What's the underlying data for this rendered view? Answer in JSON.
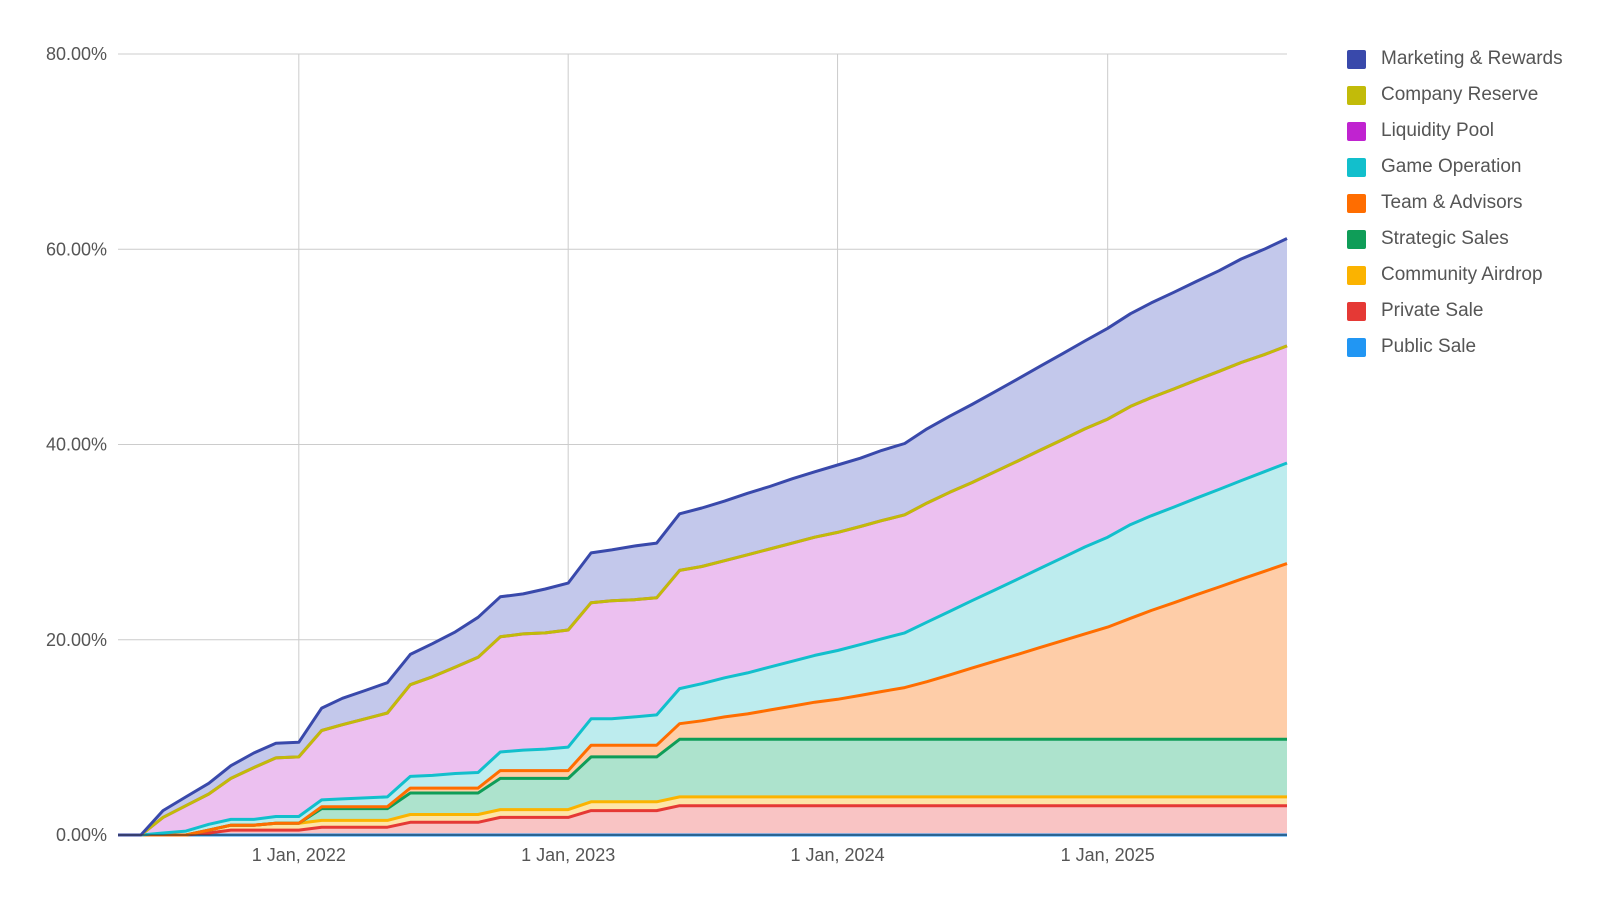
{
  "chart_data": {
    "type": "area",
    "stacked": true,
    "ylim": [
      0,
      80
    ],
    "y_tick_values": [
      0,
      20,
      40,
      60,
      80
    ],
    "y_tick_labels": [
      "0.00%",
      "20.00%",
      "40.00%",
      "60.00%",
      "80.00%"
    ],
    "xlim": [
      "2021-05-01",
      "2025-09-01"
    ],
    "x_tick_values": [
      "2022-01-01",
      "2023-01-01",
      "2024-01-01",
      "2025-01-01"
    ],
    "x_tick_labels": [
      "1 Jan, 2022",
      "1 Jan, 2023",
      "1 Jan, 2024",
      "1 Jan, 2025"
    ],
    "grid": true,
    "legend_position": "right",
    "x": [
      "2021-05-01",
      "2021-06-01",
      "2021-07-01",
      "2021-08-01",
      "2021-09-01",
      "2021-10-01",
      "2021-11-01",
      "2021-12-01",
      "2022-01-01",
      "2022-02-01",
      "2022-03-01",
      "2022-04-01",
      "2022-05-01",
      "2022-06-01",
      "2022-07-01",
      "2022-08-01",
      "2022-09-01",
      "2022-10-01",
      "2022-11-01",
      "2022-12-01",
      "2023-01-01",
      "2023-02-01",
      "2023-03-01",
      "2023-04-01",
      "2023-05-01",
      "2023-06-01",
      "2023-07-01",
      "2023-08-01",
      "2023-09-01",
      "2023-10-01",
      "2023-11-01",
      "2023-12-01",
      "2024-01-01",
      "2024-02-01",
      "2024-03-01",
      "2024-04-01",
      "2024-05-01",
      "2024-06-01",
      "2024-07-01",
      "2024-08-01",
      "2024-09-01",
      "2024-10-01",
      "2024-11-01",
      "2024-12-01",
      "2025-01-01",
      "2025-02-01",
      "2025-03-01",
      "2025-04-01",
      "2025-05-01",
      "2025-06-01",
      "2025-07-01",
      "2025-08-01",
      "2025-09-01"
    ],
    "series": [
      {
        "name": "Public Sale",
        "color": "#2196f3",
        "fill": "#bbdefb",
        "values": [
          0,
          0,
          0,
          0,
          0,
          0,
          0,
          0,
          0,
          0,
          0,
          0,
          0,
          0,
          0,
          0,
          0,
          0,
          0,
          0,
          0,
          0,
          0,
          0,
          0,
          0,
          0,
          0,
          0,
          0,
          0,
          0,
          0,
          0,
          0,
          0,
          0,
          0,
          0,
          0,
          0,
          0,
          0,
          0,
          0,
          0,
          0,
          0,
          0,
          0,
          0,
          0,
          0
        ]
      },
      {
        "name": "Private Sale",
        "color": "#e53935",
        "fill": "#f9c4c4",
        "values": [
          0,
          0,
          0,
          0,
          0.2,
          0.5,
          0.5,
          0.5,
          0.5,
          0.8,
          0.8,
          0.8,
          0.8,
          1.3,
          1.3,
          1.3,
          1.3,
          1.8,
          1.8,
          1.8,
          1.8,
          2.5,
          2.5,
          2.5,
          2.5,
          3,
          3,
          3,
          3,
          3,
          3,
          3,
          3,
          3,
          3,
          3,
          3,
          3,
          3,
          3,
          3,
          3,
          3,
          3,
          3,
          3,
          3,
          3,
          3,
          3,
          3,
          3,
          3
        ]
      },
      {
        "name": "Community Airdrop",
        "color": "#fbb300",
        "fill": "#fde5a8",
        "values": [
          0,
          0,
          0,
          0,
          0.3,
          0.5,
          0.5,
          0.7,
          0.7,
          0.7,
          0.7,
          0.7,
          0.7,
          0.8,
          0.8,
          0.8,
          0.8,
          0.8,
          0.8,
          0.8,
          0.8,
          0.9,
          0.9,
          0.9,
          0.9,
          0.9,
          0.9,
          0.9,
          0.9,
          0.9,
          0.9,
          0.9,
          0.9,
          0.9,
          0.9,
          0.9,
          0.9,
          0.9,
          0.9,
          0.9,
          0.9,
          0.9,
          0.9,
          0.9,
          0.9,
          0.9,
          0.9,
          0.9,
          0.9,
          0.9,
          0.9,
          0.9,
          0.9
        ]
      },
      {
        "name": "Strategic Sales",
        "color": "#0f9d58",
        "fill": "#ade3cd",
        "values": [
          0,
          0,
          0,
          0,
          0,
          0,
          0,
          0,
          0,
          1.2,
          1.2,
          1.2,
          1.2,
          2.2,
          2.2,
          2.2,
          2.2,
          3.2,
          3.2,
          3.2,
          3.2,
          4.6,
          4.6,
          4.6,
          4.6,
          5.9,
          5.9,
          5.9,
          5.9,
          5.9,
          5.9,
          5.9,
          5.9,
          5.9,
          5.9,
          5.9,
          5.9,
          5.9,
          5.9,
          5.9,
          5.9,
          5.9,
          5.9,
          5.9,
          5.9,
          5.9,
          5.9,
          5.9,
          5.9,
          5.9,
          5.9,
          5.9,
          5.9
        ]
      },
      {
        "name": "Team & Advisors",
        "color": "#ff6d00",
        "fill": "#fecda8",
        "values": [
          0,
          0,
          0,
          0,
          0,
          0,
          0,
          0,
          0,
          0.2,
          0.2,
          0.2,
          0.2,
          0.5,
          0.5,
          0.5,
          0.5,
          0.8,
          0.8,
          0.8,
          0.8,
          1.2,
          1.2,
          1.2,
          1.2,
          1.6,
          1.9,
          2.3,
          2.6,
          3,
          3.4,
          3.8,
          4.1,
          4.5,
          4.9,
          5.3,
          5.9,
          6.6,
          7.3,
          8,
          8.7,
          9.4,
          10.1,
          10.8,
          11.5,
          12.4,
          13.2,
          14,
          14.8,
          15.6,
          16.4,
          17.2,
          18
        ]
      },
      {
        "name": "Game Operation",
        "color": "#12bfcc",
        "fill": "#bdecee",
        "values": [
          0,
          0,
          0.2,
          0.4,
          0.6,
          0.6,
          0.6,
          0.7,
          0.7,
          0.7,
          0.8,
          0.9,
          1,
          1.2,
          1.3,
          1.5,
          1.6,
          1.9,
          2.1,
          2.2,
          2.4,
          2.7,
          2.7,
          2.9,
          3.1,
          3.6,
          3.8,
          4,
          4.2,
          4.4,
          4.6,
          4.8,
          5,
          5.2,
          5.4,
          5.6,
          6.1,
          6.5,
          6.9,
          7.3,
          7.7,
          8.1,
          8.5,
          8.9,
          9.2,
          9.6,
          9.7,
          9.8,
          9.9,
          10,
          10.1,
          10.2,
          10.3
        ]
      },
      {
        "name": "Liquidity Pool",
        "color": "#c023d0",
        "fill": "#ecc0f0",
        "values": [
          0,
          0,
          1.6,
          2.6,
          3.1,
          4.2,
          5.3,
          6,
          6.1,
          7.1,
          7.6,
          8.1,
          8.6,
          9.4,
          10.1,
          10.9,
          11.8,
          11.8,
          11.9,
          11.9,
          12,
          11.9,
          12.1,
          12,
          12,
          12.1,
          12,
          12,
          12.1,
          12.1,
          12.1,
          12.1,
          12.1,
          12.1,
          12.1,
          12.1,
          12.2,
          12.2,
          12.1,
          12.1,
          12.1,
          12.1,
          12.1,
          12.1,
          12.1,
          12.1,
          12.1,
          12.1,
          12.1,
          12.1,
          12.1,
          12,
          12
        ]
      },
      {
        "name": "Company Reserve",
        "color": "#c2bb09",
        "fill": "#f0efb6",
        "values": [
          0,
          0,
          0,
          0,
          0,
          0,
          0,
          0,
          0,
          0,
          0,
          0,
          0,
          0,
          0,
          0,
          0,
          0,
          0,
          0,
          0,
          0,
          0,
          0,
          0,
          0,
          0,
          0,
          0,
          0,
          0,
          0,
          0,
          0,
          0,
          0,
          0,
          0,
          0,
          0,
          0,
          0,
          0,
          0,
          0,
          0,
          0,
          0,
          0,
          0,
          0,
          0,
          0
        ]
      },
      {
        "name": "Marketing & Rewards",
        "color": "#3949ab",
        "fill": "#c3c8eb",
        "values": [
          0,
          0,
          0.7,
          0.9,
          1.1,
          1.3,
          1.5,
          1.5,
          1.5,
          2.3,
          2.7,
          2.9,
          3.1,
          3.1,
          3.4,
          3.6,
          4.1,
          4.1,
          4.1,
          4.5,
          4.8,
          5.1,
          5.2,
          5.5,
          5.6,
          5.8,
          6,
          6.1,
          6.3,
          6.4,
          6.6,
          6.7,
          6.9,
          7,
          7.2,
          7.3,
          7.6,
          7.8,
          8.0,
          8.2,
          8.4,
          8.6,
          8.8,
          9,
          9.3,
          9.5,
          9.7,
          9.9,
          10.1,
          10.3,
          10.6,
          10.8,
          11
        ]
      }
    ]
  }
}
